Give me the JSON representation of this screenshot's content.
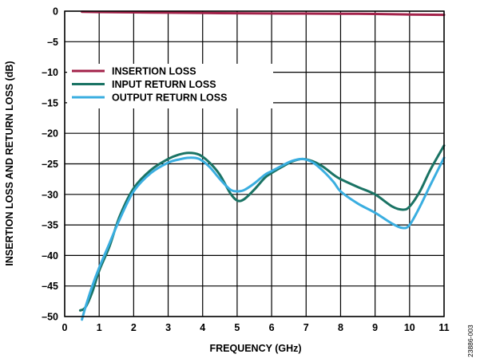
{
  "chart_data": {
    "type": "line",
    "xlabel": "FREQUENCY (GHz)",
    "ylabel": "INSERTION LOSS AND RETURN LOSS (dB)",
    "xlim": [
      0,
      11
    ],
    "ylim": [
      -50,
      0
    ],
    "xticks": [
      0,
      1,
      2,
      3,
      4,
      5,
      6,
      7,
      8,
      9,
      10,
      11
    ],
    "yticks": [
      0,
      -5,
      -10,
      -15,
      -20,
      -25,
      -30,
      -35,
      -40,
      -45,
      -50
    ],
    "xtick_labels": [
      "0",
      "1",
      "2",
      "3",
      "4",
      "5",
      "6",
      "7",
      "8",
      "9",
      "10",
      "11"
    ],
    "ytick_labels": [
      "0",
      "–5",
      "–10",
      "–15",
      "–20",
      "–25",
      "–30",
      "–35",
      "–40",
      "–45",
      "–50"
    ],
    "grid": true,
    "legend_position": "upper-left",
    "series": [
      {
        "name": "INSERTION LOSS",
        "color": "#a3224a",
        "x": [
          0.5,
          1,
          2,
          3,
          4,
          5,
          6,
          7,
          8,
          9,
          10,
          11
        ],
        "y": [
          -0.1,
          -0.15,
          -0.2,
          -0.25,
          -0.3,
          -0.35,
          -0.38,
          -0.4,
          -0.42,
          -0.45,
          -0.55,
          -0.6
        ]
      },
      {
        "name": "INPUT RETURN LOSS",
        "color": "#1a7364",
        "x": [
          0.45,
          0.6,
          0.8,
          1.0,
          1.3,
          1.6,
          2.0,
          2.5,
          3.0,
          3.3,
          3.6,
          3.9,
          4.2,
          4.5,
          4.8,
          5.0,
          5.2,
          5.5,
          5.8,
          6.0,
          6.3,
          6.6,
          6.9,
          7.2,
          7.5,
          7.8,
          8.0,
          8.5,
          9.0,
          9.5,
          9.8,
          10.0,
          10.3,
          10.6,
          11.0
        ],
        "y": [
          -49,
          -48.5,
          -46,
          -42.5,
          -38.5,
          -33.5,
          -29,
          -26,
          -24.2,
          -23.5,
          -23.2,
          -23.5,
          -24.8,
          -26.8,
          -29.8,
          -31,
          -30.8,
          -29.2,
          -27.3,
          -26.5,
          -25.5,
          -24.6,
          -24.2,
          -24.6,
          -25.5,
          -26.8,
          -27.5,
          -28.8,
          -30,
          -32,
          -32.5,
          -32,
          -29.5,
          -26,
          -22
        ]
      },
      {
        "name": "OUTPUT RETURN LOSS",
        "color": "#3aaee0",
        "x": [
          0.5,
          0.6,
          0.8,
          1.0,
          1.3,
          1.6,
          2.0,
          2.5,
          3.0,
          3.3,
          3.6,
          3.9,
          4.2,
          4.5,
          4.8,
          5.0,
          5.2,
          5.5,
          5.8,
          6.0,
          6.3,
          6.6,
          6.9,
          7.2,
          7.5,
          7.8,
          8.0,
          8.5,
          9.0,
          9.5,
          9.8,
          10.0,
          10.3,
          10.6,
          11.0
        ],
        "y": [
          -50.5,
          -48.5,
          -45,
          -42,
          -38,
          -34,
          -29.5,
          -26.5,
          -24.8,
          -24.3,
          -24,
          -24.2,
          -25.5,
          -27.5,
          -29.2,
          -29.5,
          -29.3,
          -28.2,
          -26.8,
          -26.2,
          -25.3,
          -24.5,
          -24.2,
          -24.8,
          -26.2,
          -28,
          -29.5,
          -31.5,
          -33,
          -34.8,
          -35.5,
          -35,
          -32,
          -28.5,
          -24
        ]
      }
    ],
    "watermark": "23886-003"
  }
}
